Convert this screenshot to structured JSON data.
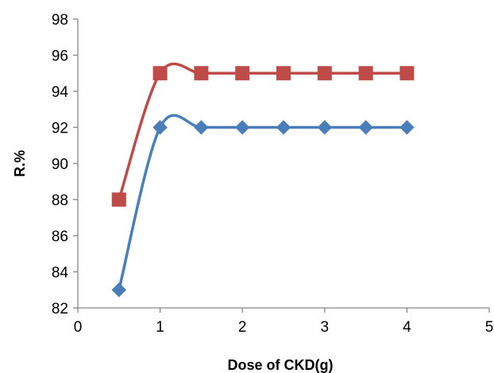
{
  "chart_data": {
    "type": "scatter",
    "title": "",
    "xlabel": "Dose of CKD(g)",
    "ylabel": "R.%",
    "xlim": [
      0,
      5
    ],
    "ylim": [
      82,
      98
    ],
    "xticks": [
      "0",
      "1",
      "2",
      "3",
      "4",
      "5"
    ],
    "yticks": [
      "82",
      "84",
      "86",
      "88",
      "90",
      "92",
      "94",
      "96",
      "98"
    ],
    "grid": false,
    "legend": "none",
    "smooth_lines": true,
    "series": [
      {
        "marker": "diamond",
        "color": "#4a7ebb",
        "x": [
          0.5,
          1,
          1.5,
          2,
          2.5,
          3,
          3.5,
          4
        ],
        "y": [
          83,
          92,
          92,
          92,
          92,
          92,
          92,
          92
        ]
      },
      {
        "marker": "square",
        "color": "#be4b48",
        "x": [
          0.5,
          1,
          1.5,
          2,
          2.5,
          3,
          3.5,
          4
        ],
        "y": [
          88,
          95,
          95,
          95,
          95,
          95,
          95,
          95
        ]
      }
    ]
  }
}
